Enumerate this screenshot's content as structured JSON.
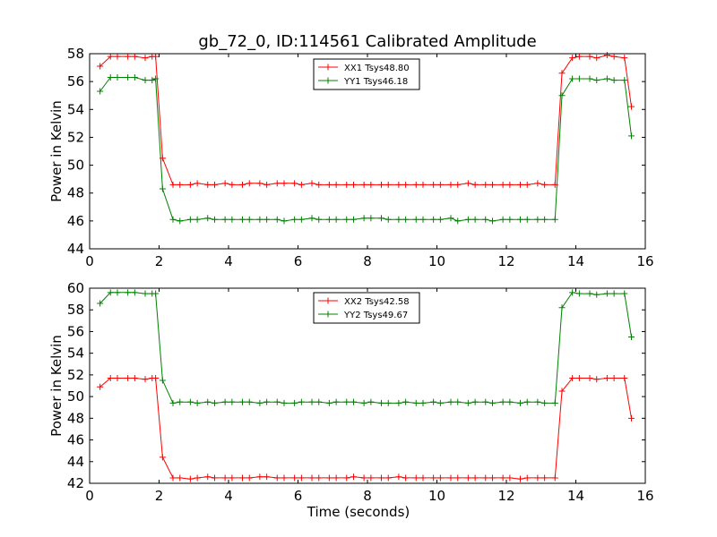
{
  "title": "gb_72_0, ID:114561 Calibrated Amplitude",
  "chart_data": [
    {
      "type": "line",
      "title": "gb_72_0, ID:114561 Calibrated Amplitude",
      "xlabel": "",
      "ylabel": "Power in Kelvin",
      "xlim": [
        0,
        16
      ],
      "ylim": [
        44,
        58
      ],
      "xticks": [
        0,
        2,
        4,
        6,
        8,
        10,
        12,
        14,
        16
      ],
      "yticks": [
        44,
        46,
        48,
        50,
        52,
        54,
        56,
        58
      ],
      "grid": false,
      "legend_position": "top-center",
      "x": [
        0.3,
        0.6,
        0.8,
        1.1,
        1.3,
        1.6,
        1.8,
        1.9,
        2.1,
        2.4,
        2.6,
        2.9,
        3.1,
        3.4,
        3.6,
        3.9,
        4.1,
        4.4,
        4.6,
        4.9,
        5.1,
        5.4,
        5.6,
        5.9,
        6.1,
        6.4,
        6.6,
        6.9,
        7.1,
        7.4,
        7.6,
        7.9,
        8.1,
        8.4,
        8.6,
        8.9,
        9.1,
        9.4,
        9.6,
        9.9,
        10.1,
        10.4,
        10.6,
        10.9,
        11.1,
        11.4,
        11.6,
        11.9,
        12.1,
        12.4,
        12.6,
        12.9,
        13.1,
        13.4,
        13.6,
        13.9,
        14.1,
        14.4,
        14.6,
        14.9,
        15.1,
        15.4,
        15.6
      ],
      "series": [
        {
          "name": "XX1 Tsys48.80",
          "color": "#ff0000",
          "values": [
            57.1,
            57.8,
            57.8,
            57.8,
            57.8,
            57.7,
            57.8,
            57.8,
            50.5,
            48.6,
            48.6,
            48.6,
            48.7,
            48.6,
            48.6,
            48.7,
            48.6,
            48.6,
            48.7,
            48.7,
            48.6,
            48.7,
            48.7,
            48.7,
            48.6,
            48.7,
            48.6,
            48.6,
            48.6,
            48.6,
            48.6,
            48.6,
            48.6,
            48.6,
            48.6,
            48.6,
            48.6,
            48.6,
            48.6,
            48.6,
            48.6,
            48.6,
            48.6,
            48.7,
            48.6,
            48.6,
            48.6,
            48.6,
            48.6,
            48.6,
            48.6,
            48.7,
            48.6,
            48.6,
            56.6,
            57.7,
            57.8,
            57.8,
            57.7,
            57.9,
            57.8,
            57.7,
            54.2
          ]
        },
        {
          "name": "YY1 Tsys46.18",
          "color": "#008000",
          "values": [
            55.3,
            56.3,
            56.3,
            56.3,
            56.3,
            56.1,
            56.1,
            56.2,
            48.3,
            46.1,
            46.0,
            46.1,
            46.1,
            46.2,
            46.1,
            46.1,
            46.1,
            46.1,
            46.1,
            46.1,
            46.1,
            46.1,
            46.0,
            46.1,
            46.1,
            46.2,
            46.1,
            46.1,
            46.1,
            46.1,
            46.1,
            46.2,
            46.2,
            46.2,
            46.1,
            46.1,
            46.1,
            46.1,
            46.1,
            46.1,
            46.1,
            46.2,
            46.0,
            46.1,
            46.1,
            46.1,
            46.0,
            46.1,
            46.1,
            46.1,
            46.1,
            46.1,
            46.1,
            46.1,
            55.0,
            56.2,
            56.2,
            56.2,
            56.1,
            56.2,
            56.1,
            56.1,
            52.1
          ]
        }
      ]
    },
    {
      "type": "line",
      "title": "",
      "xlabel": "Time (seconds)",
      "ylabel": "Power in Kelvin",
      "xlim": [
        0,
        16
      ],
      "ylim": [
        42,
        60
      ],
      "xticks": [
        0,
        2,
        4,
        6,
        8,
        10,
        12,
        14,
        16
      ],
      "yticks": [
        42,
        44,
        46,
        48,
        50,
        52,
        54,
        56,
        58,
        60
      ],
      "grid": false,
      "legend_position": "top-center",
      "x": [
        0.3,
        0.6,
        0.8,
        1.1,
        1.3,
        1.6,
        1.8,
        1.9,
        2.1,
        2.4,
        2.6,
        2.9,
        3.1,
        3.4,
        3.6,
        3.9,
        4.1,
        4.4,
        4.6,
        4.9,
        5.1,
        5.4,
        5.6,
        5.9,
        6.1,
        6.4,
        6.6,
        6.9,
        7.1,
        7.4,
        7.6,
        7.9,
        8.1,
        8.4,
        8.6,
        8.9,
        9.1,
        9.4,
        9.6,
        9.9,
        10.1,
        10.4,
        10.6,
        10.9,
        11.1,
        11.4,
        11.6,
        11.9,
        12.1,
        12.4,
        12.6,
        12.9,
        13.1,
        13.4,
        13.6,
        13.9,
        14.1,
        14.4,
        14.6,
        14.9,
        15.1,
        15.4,
        15.6
      ],
      "series": [
        {
          "name": "XX2 Tsys42.58",
          "color": "#ff0000",
          "values": [
            50.9,
            51.7,
            51.7,
            51.7,
            51.7,
            51.6,
            51.7,
            51.7,
            44.4,
            42.5,
            42.5,
            42.4,
            42.5,
            42.6,
            42.5,
            42.5,
            42.5,
            42.5,
            42.5,
            42.6,
            42.6,
            42.5,
            42.5,
            42.5,
            42.5,
            42.5,
            42.5,
            42.5,
            42.5,
            42.5,
            42.6,
            42.5,
            42.5,
            42.5,
            42.5,
            42.6,
            42.5,
            42.5,
            42.5,
            42.5,
            42.5,
            42.5,
            42.5,
            42.5,
            42.5,
            42.5,
            42.5,
            42.5,
            42.5,
            42.4,
            42.5,
            42.5,
            42.5,
            42.5,
            50.5,
            51.7,
            51.7,
            51.7,
            51.6,
            51.7,
            51.7,
            51.7,
            48.0
          ]
        },
        {
          "name": "YY2 Tsys49.67",
          "color": "#008000",
          "values": [
            58.6,
            59.6,
            59.6,
            59.6,
            59.6,
            59.5,
            59.5,
            59.5,
            51.5,
            49.4,
            49.5,
            49.5,
            49.4,
            49.5,
            49.4,
            49.5,
            49.5,
            49.5,
            49.5,
            49.4,
            49.5,
            49.5,
            49.4,
            49.4,
            49.5,
            49.5,
            49.5,
            49.4,
            49.5,
            49.5,
            49.5,
            49.4,
            49.5,
            49.4,
            49.4,
            49.4,
            49.5,
            49.4,
            49.4,
            49.5,
            49.4,
            49.5,
            49.5,
            49.4,
            49.5,
            49.5,
            49.4,
            49.5,
            49.5,
            49.4,
            49.5,
            49.5,
            49.4,
            49.4,
            58.2,
            59.6,
            59.5,
            59.5,
            59.4,
            59.5,
            59.5,
            59.5,
            55.5
          ]
        }
      ]
    }
  ]
}
